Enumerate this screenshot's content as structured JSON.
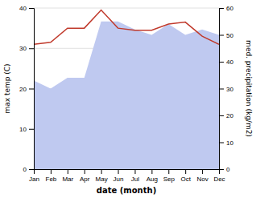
{
  "chart_data": {
    "type": "line",
    "xlabel": "date (month)",
    "ylabel": "max temp (C)",
    "y2label": "med. precipitation (kg/m2)",
    "categories": [
      "Jan",
      "Feb",
      "Mar",
      "Apr",
      "May",
      "Jun",
      "Jul",
      "Aug",
      "Sep",
      "Oct",
      "Nov",
      "Dec"
    ],
    "series": [
      {
        "type": "area",
        "axis": "y2",
        "color": "#bfc9f0",
        "values": [
          33,
          30,
          34,
          34,
          55,
          55,
          52,
          50,
          54,
          50,
          52,
          50
        ]
      },
      {
        "type": "line",
        "color": "#c0392b",
        "values": [
          31,
          31.5,
          35,
          35,
          39.5,
          35,
          34.5,
          34.5,
          36,
          36.5,
          33,
          31
        ]
      }
    ],
    "ylim": [
      0,
      40
    ],
    "yticks": [
      0,
      10,
      20,
      30,
      40
    ],
    "y2lim": [
      0,
      60
    ],
    "y2ticks": [
      0,
      10,
      20,
      30,
      40,
      50,
      60
    ],
    "grid": true
  }
}
